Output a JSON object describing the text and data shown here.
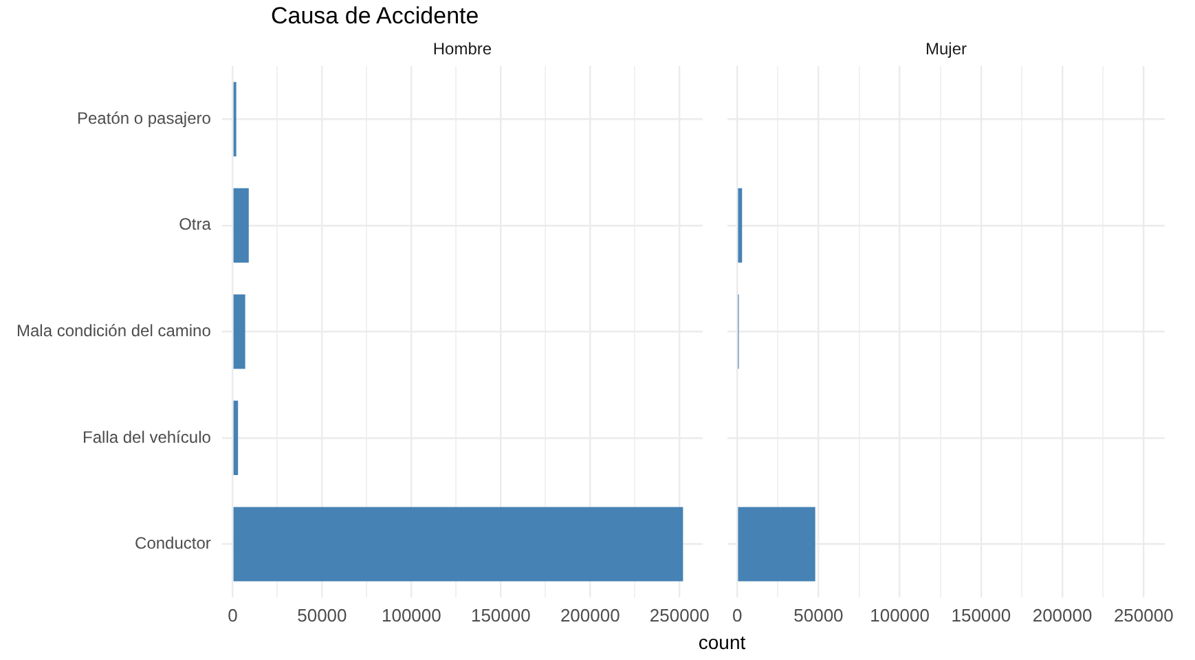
{
  "chart_data": [
    {
      "type": "bar",
      "orientation": "horizontal",
      "title": "Causa de Accidente",
      "subtitle": "Hombre",
      "categories": [
        "Peatón o pasajero",
        "Otra",
        "Mala condición del camino",
        "Falla del vehículo",
        "Conductor"
      ],
      "values": [
        2000,
        9000,
        7000,
        3000,
        252000
      ],
      "color": "#4682b4",
      "xlim": [
        -6000,
        263000
      ],
      "xticks": [
        0,
        {
          "value": 25000,
          "label": null
        },
        50000,
        {
          "value": 75000,
          "label": null
        },
        100000,
        {
          "value": 125000,
          "label": null
        },
        150000,
        {
          "value": 175000,
          "label": null
        },
        200000,
        {
          "value": 225000,
          "label": null
        },
        250000
      ],
      "grid": true,
      "legend": false
    },
    {
      "type": "bar",
      "orientation": "horizontal",
      "subtitle": "Mujer",
      "xlabel": "count",
      "categories": [
        null,
        null,
        null,
        null,
        null
      ],
      "values": [
        null,
        3000,
        1000,
        null,
        48000
      ],
      "color": "#4682b4",
      "xlim": [
        -6000,
        263000
      ],
      "xticks": [
        0,
        {
          "value": 25000,
          "label": null
        },
        50000,
        {
          "value": 75000,
          "label": null
        },
        100000,
        {
          "value": 125000,
          "label": null
        },
        150000,
        {
          "value": 175000,
          "label": null
        },
        200000,
        {
          "value": 225000,
          "label": null
        },
        250000
      ],
      "grid": true,
      "legend": false,
      "tick_labels": "x"
    }
  ]
}
